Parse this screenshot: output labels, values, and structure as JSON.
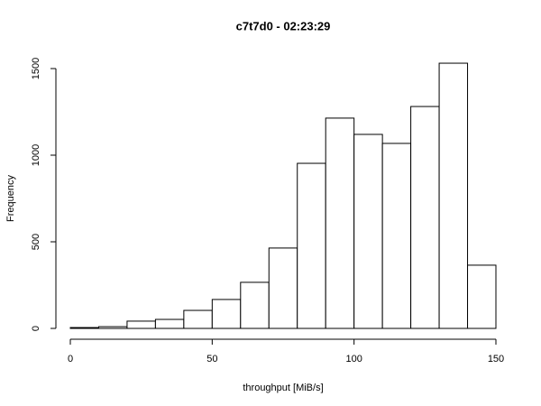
{
  "chart_data": {
    "type": "histogram",
    "title": "c7t7d0 - 02:23:29",
    "x_label": "throughput [MiB/s]",
    "y_label": "Frequency",
    "bins": [
      0,
      10,
      20,
      30,
      40,
      50,
      60,
      70,
      80,
      90,
      100,
      110,
      120,
      130,
      140,
      150
    ],
    "counts": [
      5,
      10,
      42,
      52,
      104,
      167,
      266,
      464,
      953,
      1214,
      1120,
      1068,
      1281,
      1531,
      365
    ],
    "color": "#ffffff",
    "xlim": [
      0,
      150
    ],
    "xticks": [
      0,
      50,
      100,
      150
    ],
    "ylim": [
      0,
      1500
    ],
    "yticks": [
      0,
      500,
      1000,
      1500
    ]
  }
}
